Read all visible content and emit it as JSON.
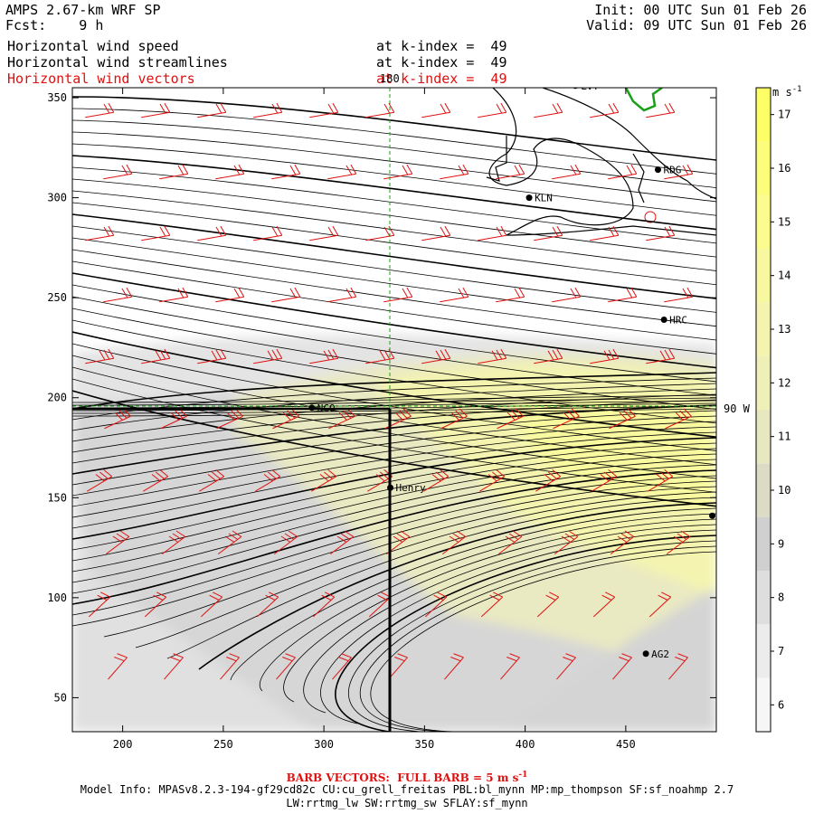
{
  "header": {
    "title": "AMPS 2.67-km WRF SP",
    "forecast": "Fcst:    9 h",
    "init": "Init: 00 UTC Sun 01 Feb 26",
    "valid": "Valid: 09 UTC Sun 01 Feb 26",
    "fields": [
      {
        "name": "Horizontal wind speed",
        "level": "at k-index =  49",
        "color": "#000000"
      },
      {
        "name": "Horizontal wind streamlines",
        "level": "at k-index =  49",
        "color": "#000000"
      },
      {
        "name": "Horizontal wind vectors",
        "level": "at k-index =  49",
        "color": "#e01010"
      }
    ]
  },
  "map": {
    "x_ticks": [
      "200",
      "250",
      "300",
      "350",
      "400",
      "450"
    ],
    "y_ticks": [
      "50",
      "100",
      "150",
      "200",
      "250",
      "300",
      "350"
    ],
    "x_range": [
      175,
      495
    ],
    "y_range": [
      33,
      355
    ],
    "lon_label": "180",
    "lat_label": "90 W",
    "stations": [
      {
        "name": "LVT",
        "x": 425,
        "y": 356
      },
      {
        "name": "RDG",
        "x": 466,
        "y": 314
      },
      {
        "name": "KLN",
        "x": 402,
        "y": 300
      },
      {
        "name": "HRC",
        "x": 469,
        "y": 239
      },
      {
        "name": "NCO",
        "x": 294,
        "y": 195
      },
      {
        "name": "Henry",
        "x": 333,
        "y": 155
      },
      {
        "name": "",
        "x": 493,
        "y": 141
      },
      {
        "name": "AG2",
        "x": 460,
        "y": 72
      }
    ],
    "colors": {
      "vectors": "#e01010",
      "streamlines": "#000000",
      "coast": "#000000",
      "feature": "#19a019"
    }
  },
  "colorbar": {
    "units": "m s",
    "units_exp": "-1",
    "labels": [
      "6",
      "7",
      "8",
      "9",
      "10",
      "11",
      "12",
      "13",
      "14",
      "15",
      "16",
      "17"
    ],
    "colors": [
      "#f6f6f6",
      "#ececec",
      "#dedede",
      "#d0d0d0",
      "#dcdcc6",
      "#e8e8c0",
      "#efefb8",
      "#f4f4b0",
      "#f8f8a0",
      "#fbfb8e",
      "#fdfd7c",
      "#fefe66"
    ]
  },
  "footer": {
    "barb_label": "BARB VECTORS:  FULL BARB = 5 m s",
    "barb_exp": "-1",
    "model_info": "Model Info: MPASv8.2.3-194-gf29cd82c CU:cu_grell_freitas PBL:bl_mynn MP:mp_thompson SF:sf_noahmp 2.7",
    "schemes": "LW:rrtmg_lw SW:rrtmg_sw SFLAY:sf_mynn"
  }
}
